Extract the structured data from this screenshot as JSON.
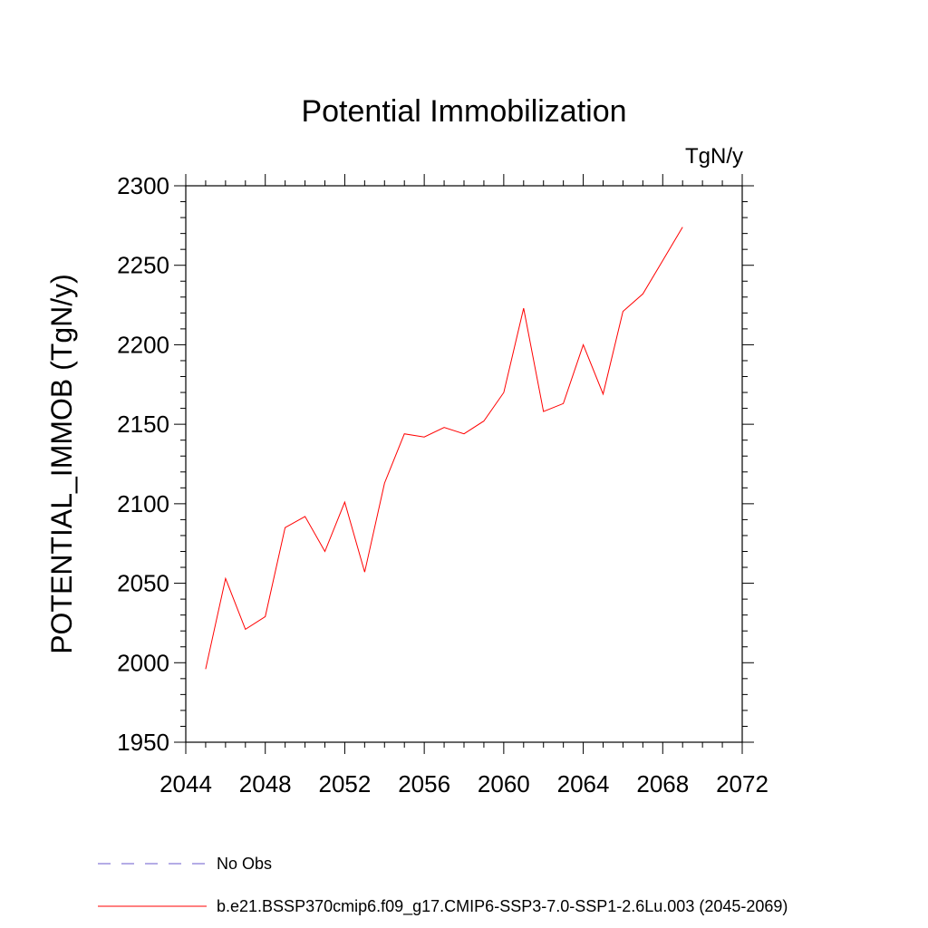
{
  "chart_data": {
    "type": "line",
    "title": "Potential Immobilization",
    "units_label": "TgN/y",
    "ylabel": "POTENTIAL_IMMOB  (TgN/y)",
    "xlabel": "",
    "xlim": [
      2044,
      2072
    ],
    "ylim": [
      1950,
      2300
    ],
    "x_ticks": [
      2044,
      2048,
      2052,
      2056,
      2060,
      2064,
      2068,
      2072
    ],
    "y_ticks": [
      1950,
      2000,
      2050,
      2100,
      2150,
      2200,
      2250,
      2300
    ],
    "grid": false,
    "series": [
      {
        "name": "b.e21.BSSP370cmip6.f09_g17.CMIP6-SSP3-7.0-SSP1-2.6Lu.003 (2045-2069)",
        "color": "#ff0000",
        "x": [
          2045,
          2046,
          2047,
          2048,
          2049,
          2050,
          2051,
          2052,
          2053,
          2054,
          2055,
          2056,
          2057,
          2058,
          2059,
          2060,
          2061,
          2062,
          2063,
          2064,
          2065,
          2066,
          2067,
          2068,
          2069
        ],
        "y": [
          1996,
          2053,
          2021,
          2029,
          2085,
          2092,
          2070,
          2101,
          2057,
          2113,
          2144,
          2142,
          2148,
          2144,
          2152,
          2170,
          2223,
          2158,
          2163,
          2200,
          2169,
          2221,
          2232,
          2253,
          2274
        ]
      }
    ],
    "legend": [
      {
        "label": "No Obs",
        "color": "#6a5acd",
        "dashed": true
      },
      {
        "label": "b.e21.BSSP370cmip6.f09_g17.CMIP6-SSP3-7.0-SSP1-2.6Lu.003 (2045-2069)",
        "color": "#ff0000",
        "dashed": false
      }
    ],
    "legend_placement": "bottom"
  }
}
